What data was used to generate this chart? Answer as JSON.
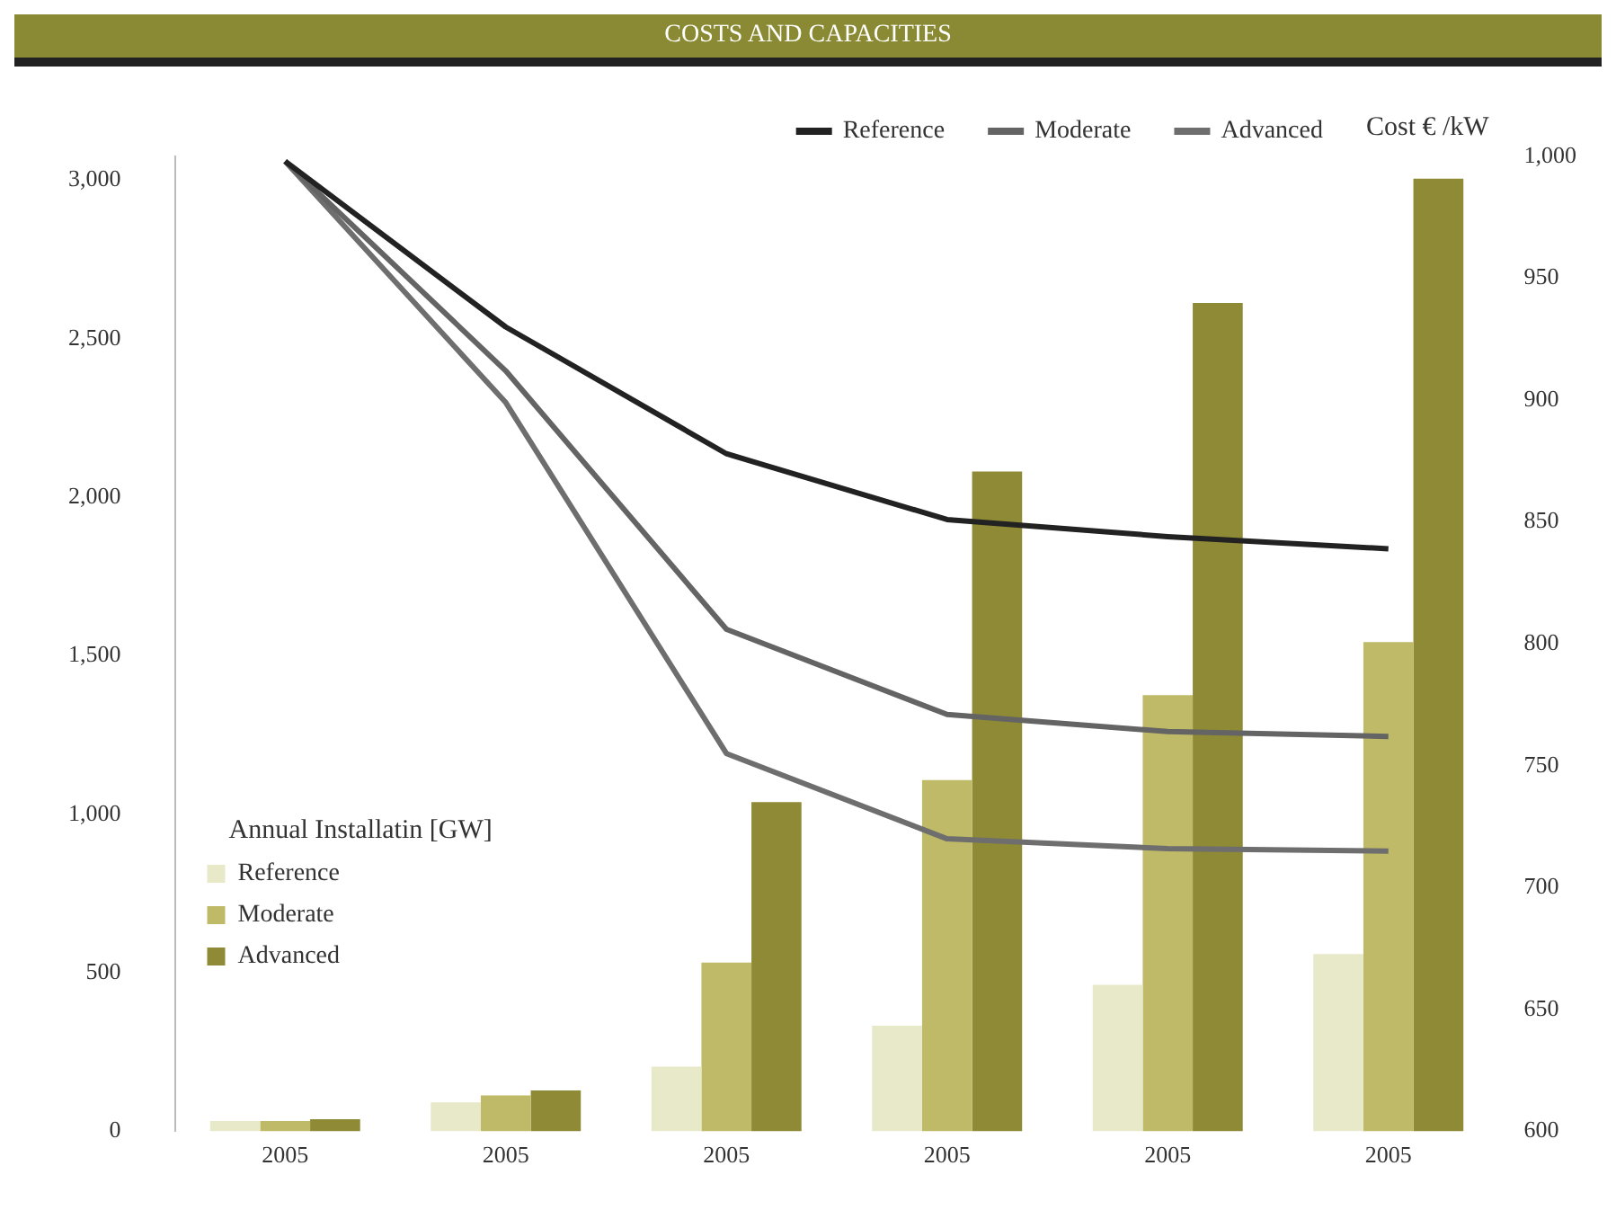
{
  "chart_data": {
    "type": "bar",
    "title": "COSTS AND CAPACITIES",
    "legend_title": "Annual Installatin [GW]",
    "y2label": "Cost € /kW",
    "categories": [
      "2005",
      "2005",
      "2005",
      "2005",
      "2005",
      "2005"
    ],
    "series": [
      {
        "name": "Reference",
        "color": "#e8e9c9",
        "values": [
          32,
          91,
          204,
          333,
          462,
          559
        ]
      },
      {
        "name": "Moderate",
        "color": "#bfba67",
        "values": [
          32,
          113,
          532,
          1108,
          1376,
          1543
        ]
      },
      {
        "name": "Advanced",
        "color": "#8f8a35",
        "values": [
          38,
          129,
          1038,
          2081,
          2613,
          3005
        ]
      },
      {
        "name": "Reference",
        "type": "line",
        "axis": "y2",
        "color": "#222222",
        "values": [
          998,
          930,
          878,
          851,
          844,
          839
        ]
      },
      {
        "name": "Moderate",
        "type": "line",
        "axis": "y2",
        "color": "#646464",
        "values": [
          998,
          912,
          806,
          771,
          764,
          762
        ]
      },
      {
        "name": "Advanced",
        "type": "line",
        "axis": "y2",
        "color": "#6e6e6e",
        "values": [
          998,
          899,
          755,
          720,
          716,
          715
        ]
      }
    ],
    "ylim": [
      0,
      3075
    ],
    "yticks": [
      {
        "value": 0,
        "label": "0"
      },
      {
        "value": 500,
        "label": "500"
      },
      {
        "value": 1000,
        "label": "1,000"
      },
      {
        "value": 1500,
        "label": "1,500"
      },
      {
        "value": 2000,
        "label": "2,000"
      },
      {
        "value": 2500,
        "label": "2,500"
      },
      {
        "value": 3000,
        "label": "3,000"
      }
    ],
    "y2lim": [
      600,
      1000
    ],
    "y2ticks": [
      {
        "value": 600,
        "label": "600"
      },
      {
        "value": 650,
        "label": "650"
      },
      {
        "value": 700,
        "label": "700"
      },
      {
        "value": 750,
        "label": "750"
      },
      {
        "value": 800,
        "label": "800"
      },
      {
        "value": 850,
        "label": "850"
      },
      {
        "value": 900,
        "label": "900"
      },
      {
        "value": 950,
        "label": "950"
      },
      {
        "value": 1000,
        "label": "1,000"
      }
    ],
    "grid": false,
    "legend": "top left",
    "marker": "none",
    "line_style": "solid"
  }
}
